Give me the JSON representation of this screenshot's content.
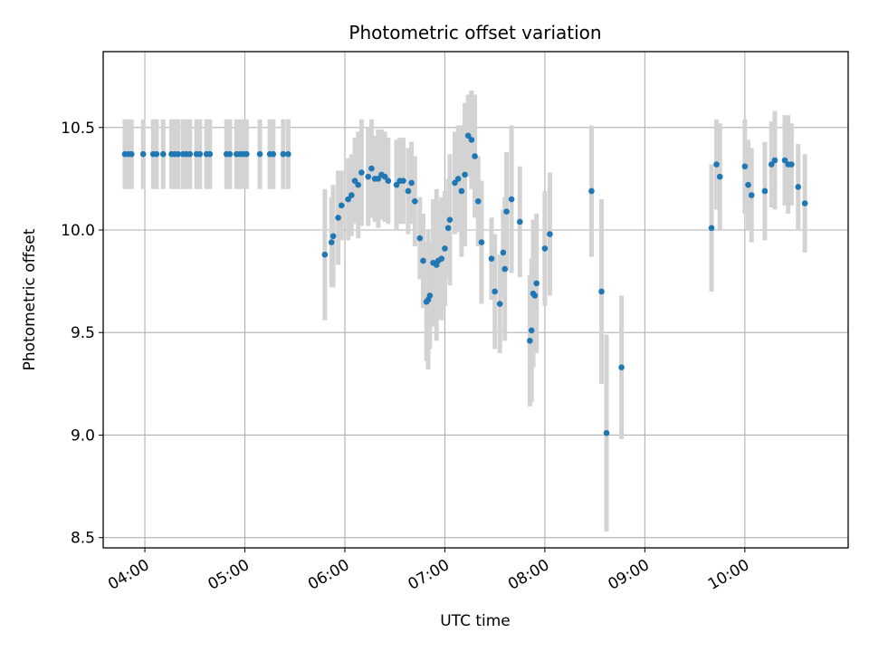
{
  "chart_data": {
    "type": "scatter",
    "title": "Photometric offset variation",
    "xlabel": "UTC time",
    "ylabel": "Photometric offset",
    "xlim": [
      "03:35",
      "11:02"
    ],
    "ylim": [
      8.45,
      10.87
    ],
    "grid": true,
    "x_ticks": [
      "04:00",
      "05:00",
      "06:00",
      "07:00",
      "08:00",
      "09:00",
      "10:00"
    ],
    "y_ticks": [
      "8.5",
      "9.0",
      "9.5",
      "10.0",
      "10.5"
    ],
    "colors": {
      "points": "#1f77b4",
      "error_bars": "#d3d3d3",
      "grid": "#b0b0b0"
    },
    "points": [
      {
        "x": "03:48",
        "y": 10.37,
        "err": 0.17
      },
      {
        "x": "03:50",
        "y": 10.37,
        "err": 0.17
      },
      {
        "x": "03:52",
        "y": 10.37,
        "err": 0.17
      },
      {
        "x": "03:59",
        "y": 10.37,
        "err": 0.17
      },
      {
        "x": "04:05",
        "y": 10.37,
        "err": 0.17
      },
      {
        "x": "04:07",
        "y": 10.37,
        "err": 0.17
      },
      {
        "x": "04:11",
        "y": 10.37,
        "err": 0.17
      },
      {
        "x": "04:16",
        "y": 10.37,
        "err": 0.17
      },
      {
        "x": "04:18",
        "y": 10.37,
        "err": 0.17
      },
      {
        "x": "04:20",
        "y": 10.37,
        "err": 0.17
      },
      {
        "x": "04:23",
        "y": 10.37,
        "err": 0.17
      },
      {
        "x": "04:25",
        "y": 10.37,
        "err": 0.17
      },
      {
        "x": "04:27",
        "y": 10.37,
        "err": 0.17
      },
      {
        "x": "04:31",
        "y": 10.37,
        "err": 0.17
      },
      {
        "x": "04:33",
        "y": 10.37,
        "err": 0.17
      },
      {
        "x": "04:37",
        "y": 10.37,
        "err": 0.17
      },
      {
        "x": "04:39",
        "y": 10.37,
        "err": 0.17
      },
      {
        "x": "04:49",
        "y": 10.37,
        "err": 0.17
      },
      {
        "x": "04:51",
        "y": 10.37,
        "err": 0.17
      },
      {
        "x": "04:55",
        "y": 10.37,
        "err": 0.17
      },
      {
        "x": "04:57",
        "y": 10.37,
        "err": 0.17
      },
      {
        "x": "04:59",
        "y": 10.37,
        "err": 0.17
      },
      {
        "x": "05:01",
        "y": 10.37,
        "err": 0.17
      },
      {
        "x": "05:09",
        "y": 10.37,
        "err": 0.17
      },
      {
        "x": "05:15",
        "y": 10.37,
        "err": 0.17
      },
      {
        "x": "05:17",
        "y": 10.37,
        "err": 0.17
      },
      {
        "x": "05:23",
        "y": 10.37,
        "err": 0.17
      },
      {
        "x": "05:26",
        "y": 10.37,
        "err": 0.17
      },
      {
        "x": "05:48",
        "y": 9.88,
        "err": 0.32
      },
      {
        "x": "05:52",
        "y": 9.94,
        "err": 0.22
      },
      {
        "x": "05:53",
        "y": 9.97,
        "err": 0.25
      },
      {
        "x": "05:56",
        "y": 10.06,
        "err": 0.23
      },
      {
        "x": "05:58",
        "y": 10.12,
        "err": 0.17
      },
      {
        "x": "06:02",
        "y": 10.15,
        "err": 0.2
      },
      {
        "x": "06:04",
        "y": 10.17,
        "err": 0.2
      },
      {
        "x": "06:06",
        "y": 10.24,
        "err": 0.21
      },
      {
        "x": "06:08",
        "y": 10.22,
        "err": 0.26
      },
      {
        "x": "06:10",
        "y": 10.28,
        "err": 0.26
      },
      {
        "x": "06:14",
        "y": 10.26,
        "err": 0.24
      },
      {
        "x": "06:16",
        "y": 10.3,
        "err": 0.24
      },
      {
        "x": "06:18",
        "y": 10.25,
        "err": 0.21
      },
      {
        "x": "06:20",
        "y": 10.25,
        "err": 0.24
      },
      {
        "x": "06:22",
        "y": 10.27,
        "err": 0.22
      },
      {
        "x": "06:24",
        "y": 10.26,
        "err": 0.22
      },
      {
        "x": "06:26",
        "y": 10.24,
        "err": 0.21
      },
      {
        "x": "06:31",
        "y": 10.22,
        "err": 0.22
      },
      {
        "x": "06:33",
        "y": 10.24,
        "err": 0.21
      },
      {
        "x": "06:35",
        "y": 10.24,
        "err": 0.21
      },
      {
        "x": "06:38",
        "y": 10.19,
        "err": 0.21
      },
      {
        "x": "06:40",
        "y": 10.23,
        "err": 0.2
      },
      {
        "x": "06:42",
        "y": 10.14,
        "err": 0.22
      },
      {
        "x": "06:45",
        "y": 9.96,
        "err": 0.2
      },
      {
        "x": "06:47",
        "y": 9.85,
        "err": 0.23
      },
      {
        "x": "06:49",
        "y": 9.65,
        "err": 0.29
      },
      {
        "x": "06:50",
        "y": 9.66,
        "err": 0.34
      },
      {
        "x": "06:51",
        "y": 9.68,
        "err": 0.26
      },
      {
        "x": "06:53",
        "y": 9.84,
        "err": 0.31
      },
      {
        "x": "06:55",
        "y": 9.83,
        "err": 0.37
      },
      {
        "x": "06:56",
        "y": 9.85,
        "err": 0.29
      },
      {
        "x": "06:58",
        "y": 9.86,
        "err": 0.3
      },
      {
        "x": "07:00",
        "y": 9.91,
        "err": 0.28
      },
      {
        "x": "07:02",
        "y": 10.01,
        "err": 0.24
      },
      {
        "x": "07:03",
        "y": 10.05,
        "err": 0.32
      },
      {
        "x": "07:06",
        "y": 10.23,
        "err": 0.25
      },
      {
        "x": "07:08",
        "y": 10.25,
        "err": 0.26
      },
      {
        "x": "07:10",
        "y": 10.19,
        "err": 0.32
      },
      {
        "x": "07:12",
        "y": 10.27,
        "err": 0.35
      },
      {
        "x": "07:14",
        "y": 10.46,
        "err": 0.2
      },
      {
        "x": "07:16",
        "y": 10.44,
        "err": 0.24
      },
      {
        "x": "07:18",
        "y": 10.36,
        "err": 0.3
      },
      {
        "x": "07:20",
        "y": 10.14,
        "err": 0.22
      },
      {
        "x": "07:22",
        "y": 9.94,
        "err": 0.3
      },
      {
        "x": "07:28",
        "y": 9.86,
        "err": 0.2
      },
      {
        "x": "07:30",
        "y": 9.7,
        "err": 0.28
      },
      {
        "x": "07:33",
        "y": 9.64,
        "err": 0.24
      },
      {
        "x": "07:35",
        "y": 9.89,
        "err": 0.21
      },
      {
        "x": "07:36",
        "y": 9.81,
        "err": 0.35
      },
      {
        "x": "07:37",
        "y": 10.09,
        "err": 0.29
      },
      {
        "x": "07:40",
        "y": 10.15,
        "err": 0.36
      },
      {
        "x": "07:45",
        "y": 10.04,
        "err": 0.27
      },
      {
        "x": "07:51",
        "y": 9.46,
        "err": 0.32
      },
      {
        "x": "07:52",
        "y": 9.51,
        "err": 0.35
      },
      {
        "x": "07:53",
        "y": 9.69,
        "err": 0.36
      },
      {
        "x": "07:54",
        "y": 9.68,
        "err": 0.28
      },
      {
        "x": "07:55",
        "y": 9.74,
        "err": 0.34
      },
      {
        "x": "08:00",
        "y": 9.91,
        "err": 0.28
      },
      {
        "x": "08:03",
        "y": 9.98,
        "err": 0.3
      },
      {
        "x": "08:28",
        "y": 10.19,
        "err": 0.32
      },
      {
        "x": "08:34",
        "y": 9.7,
        "err": 0.45
      },
      {
        "x": "08:37",
        "y": 9.01,
        "err": 0.48
      },
      {
        "x": "08:46",
        "y": 9.33,
        "err": 0.35
      },
      {
        "x": "09:40",
        "y": 10.01,
        "err": 0.31
      },
      {
        "x": "09:43",
        "y": 10.32,
        "err": 0.22
      },
      {
        "x": "09:45",
        "y": 10.26,
        "err": 0.26
      },
      {
        "x": "10:00",
        "y": 10.31,
        "err": 0.23
      },
      {
        "x": "10:02",
        "y": 10.22,
        "err": 0.22
      },
      {
        "x": "10:04",
        "y": 10.17,
        "err": 0.23
      },
      {
        "x": "10:12",
        "y": 10.19,
        "err": 0.24
      },
      {
        "x": "10:16",
        "y": 10.32,
        "err": 0.21
      },
      {
        "x": "10:18",
        "y": 10.34,
        "err": 0.24
      },
      {
        "x": "10:24",
        "y": 10.34,
        "err": 0.22
      },
      {
        "x": "10:26",
        "y": 10.32,
        "err": 0.24
      },
      {
        "x": "10:28",
        "y": 10.32,
        "err": 0.2
      },
      {
        "x": "10:32",
        "y": 10.21,
        "err": 0.21
      },
      {
        "x": "10:36",
        "y": 10.13,
        "err": 0.24
      }
    ]
  }
}
